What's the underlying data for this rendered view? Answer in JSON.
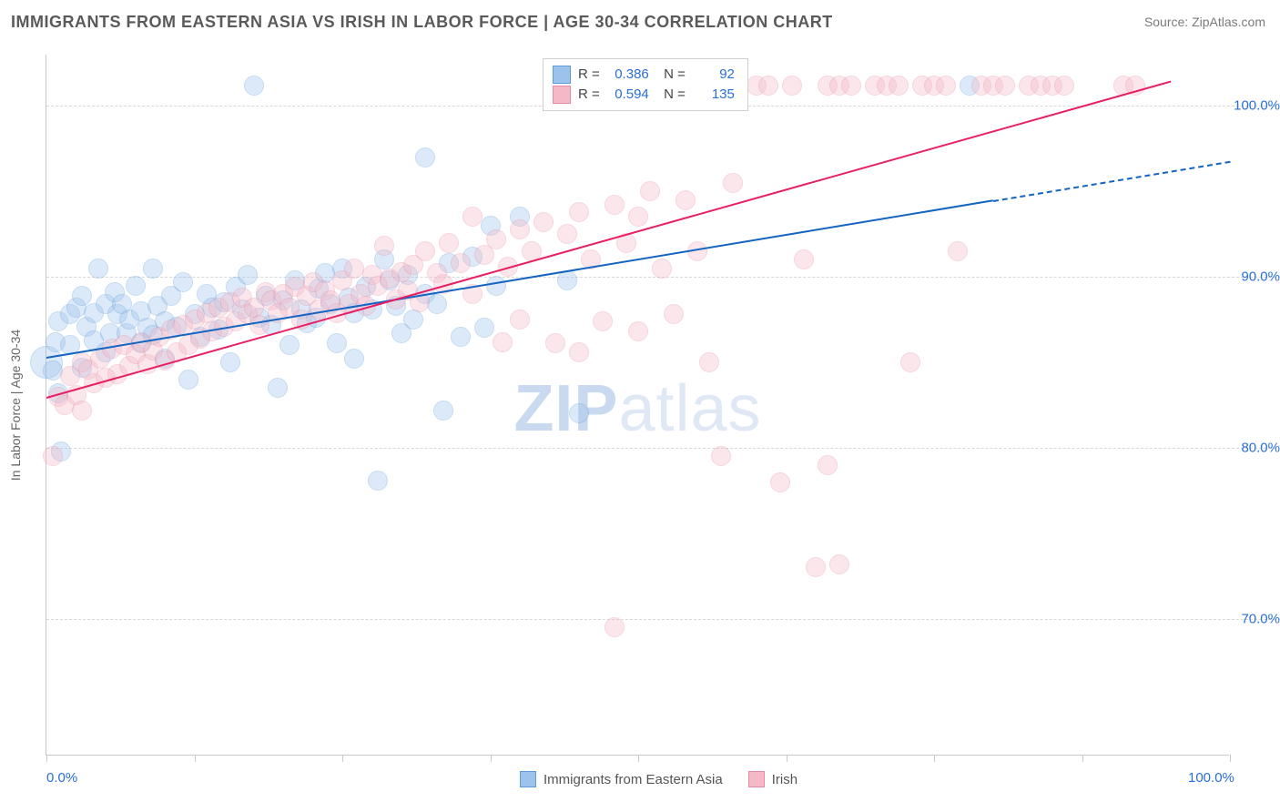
{
  "title": "IMMIGRANTS FROM EASTERN ASIA VS IRISH IN LABOR FORCE | AGE 30-34 CORRELATION CHART",
  "source_label": "Source: ",
  "source_name": "ZipAtlas.com",
  "watermark_a": "ZIP",
  "watermark_b": "atlas",
  "chart": {
    "type": "scatter-correlation",
    "xlim": [
      0,
      100
    ],
    "ylim": [
      62,
      103
    ],
    "x_ticks": [
      0,
      12.5,
      25,
      37.5,
      50,
      62.5,
      75,
      87.5,
      100
    ],
    "x_tick_labels_shown": {
      "0": "0.0%",
      "100": "100.0%"
    },
    "y_gridlines": [
      70,
      80,
      90,
      100
    ],
    "y_tick_labels": {
      "70": "70.0%",
      "80": "80.0%",
      "90": "90.0%",
      "100": "100.0%"
    },
    "y_axis_title": "In Labor Force | Age 30-34",
    "background_color": "#ffffff",
    "grid_color": "#d8d8d8",
    "axis_color": "#c9c9c9",
    "label_color": "#2a6fd6",
    "marker_radius": 11,
    "marker_radius_large": 16,
    "marker_opacity": 0.35,
    "series": [
      {
        "key": "asia",
        "label": "Immigrants from Eastern Asia",
        "fill": "#9cc3ec",
        "stroke": "#5a9bd8",
        "trend_color": "#1565c0",
        "R": "0.386",
        "N": "92",
        "trend": {
          "x1": 0,
          "y1": 85.3,
          "x2": 80,
          "y2": 94.5,
          "dash_from_x": 80,
          "dash_to_x": 100,
          "y_at_100": 96.8
        },
        "points": [
          [
            0,
            85,
            18
          ],
          [
            0.5,
            84.5
          ],
          [
            0.8,
            86.2
          ],
          [
            1,
            83.2
          ],
          [
            1,
            87.4
          ],
          [
            1.2,
            79.8
          ],
          [
            2,
            87.8
          ],
          [
            2,
            86.0
          ],
          [
            2.5,
            88.2
          ],
          [
            3,
            84.7
          ],
          [
            3,
            88.9
          ],
          [
            3.4,
            87.1
          ],
          [
            4,
            86.3
          ],
          [
            4,
            87.9
          ],
          [
            4.4,
            90.5
          ],
          [
            5,
            88.4
          ],
          [
            5,
            85.6
          ],
          [
            5.4,
            86.7
          ],
          [
            5.8,
            89.1
          ],
          [
            6,
            87.8
          ],
          [
            6.4,
            88.4
          ],
          [
            6.8,
            86.7
          ],
          [
            7,
            87.5
          ],
          [
            7.5,
            89.5
          ],
          [
            8,
            86.1
          ],
          [
            8,
            88.0
          ],
          [
            8.5,
            87.0
          ],
          [
            9,
            86.6
          ],
          [
            9,
            90.5
          ],
          [
            9.4,
            88.3
          ],
          [
            10,
            87.4
          ],
          [
            10,
            85.2
          ],
          [
            10.5,
            88.9
          ],
          [
            11,
            87.1
          ],
          [
            11.5,
            89.7
          ],
          [
            12,
            84.0
          ],
          [
            12.5,
            87.8
          ],
          [
            13,
            86.5
          ],
          [
            13.5,
            89.0
          ],
          [
            14,
            88.2
          ],
          [
            14.5,
            86.9
          ],
          [
            15,
            88.5
          ],
          [
            15.5,
            85.0
          ],
          [
            16,
            89.4
          ],
          [
            16.5,
            88.1
          ],
          [
            17,
            90.1
          ],
          [
            17.5,
            101.2
          ],
          [
            18,
            87.6
          ],
          [
            18.5,
            88.9
          ],
          [
            19,
            87.2
          ],
          [
            19.5,
            83.5
          ],
          [
            20,
            88.6
          ],
          [
            20.5,
            86.0
          ],
          [
            21,
            89.8
          ],
          [
            21.5,
            88.1
          ],
          [
            22,
            87.3
          ],
          [
            22.8,
            87.6
          ],
          [
            23,
            89.3
          ],
          [
            23.5,
            90.2
          ],
          [
            24,
            88.4
          ],
          [
            24.5,
            86.1
          ],
          [
            25,
            90.5
          ],
          [
            25.5,
            88.8
          ],
          [
            26,
            87.9
          ],
          [
            26,
            85.2
          ],
          [
            27,
            89.4
          ],
          [
            27.5,
            88.1
          ],
          [
            28,
            78.1
          ],
          [
            28.5,
            91.0
          ],
          [
            29,
            89.8
          ],
          [
            29.5,
            88.3
          ],
          [
            30,
            86.7
          ],
          [
            30.5,
            90.1
          ],
          [
            31,
            87.5
          ],
          [
            32,
            89.0
          ],
          [
            32,
            97.0
          ],
          [
            33,
            88.4
          ],
          [
            33.5,
            82.2
          ],
          [
            34,
            90.8
          ],
          [
            35,
            86.5
          ],
          [
            36,
            91.2
          ],
          [
            37,
            87.0
          ],
          [
            37.5,
            93.0
          ],
          [
            38,
            89.5
          ],
          [
            40,
            93.5
          ],
          [
            44,
            89.8
          ],
          [
            45,
            82.0
          ],
          [
            47,
            101.2
          ],
          [
            52,
            101.2
          ],
          [
            54,
            101.2
          ],
          [
            56,
            101.2
          ],
          [
            78,
            101.2
          ]
        ]
      },
      {
        "key": "irish",
        "label": "Irish",
        "fill": "#f5b8c7",
        "stroke": "#e68aa3",
        "trend_color": "#e91e63",
        "R": "0.594",
        "N": "135",
        "trend": {
          "x1": 0,
          "y1": 83.0,
          "x2": 95,
          "y2": 101.5
        },
        "points": [
          [
            0.5,
            79.5
          ],
          [
            1,
            83.0
          ],
          [
            1.5,
            82.5
          ],
          [
            2,
            84.2
          ],
          [
            2.5,
            83.1
          ],
          [
            3,
            85.0
          ],
          [
            3,
            82.2
          ],
          [
            3.5,
            84.6
          ],
          [
            4,
            83.8
          ],
          [
            4.5,
            85.2
          ],
          [
            5,
            84.1
          ],
          [
            5.5,
            85.8
          ],
          [
            6,
            84.3
          ],
          [
            6.5,
            86.0
          ],
          [
            7,
            84.8
          ],
          [
            7.5,
            85.5
          ],
          [
            8,
            86.2
          ],
          [
            8.5,
            84.9
          ],
          [
            9,
            85.7
          ],
          [
            9.5,
            86.5
          ],
          [
            10,
            85.1
          ],
          [
            10.5,
            86.9
          ],
          [
            11,
            85.6
          ],
          [
            11.5,
            87.2
          ],
          [
            12,
            86.0
          ],
          [
            12.5,
            87.5
          ],
          [
            13,
            86.4
          ],
          [
            13.5,
            87.9
          ],
          [
            14,
            86.8
          ],
          [
            14.5,
            88.2
          ],
          [
            15,
            87.1
          ],
          [
            15.5,
            88.5
          ],
          [
            16,
            87.4
          ],
          [
            16.5,
            88.8
          ],
          [
            17,
            87.8
          ],
          [
            17.5,
            88.2
          ],
          [
            18,
            87.2
          ],
          [
            18.5,
            89.1
          ],
          [
            19,
            88.6
          ],
          [
            19.5,
            87.9
          ],
          [
            20,
            89.0
          ],
          [
            20.5,
            88.2
          ],
          [
            21,
            89.4
          ],
          [
            21.5,
            87.5
          ],
          [
            22,
            88.9
          ],
          [
            22.5,
            89.7
          ],
          [
            23,
            88.1
          ],
          [
            23.5,
            89.2
          ],
          [
            24,
            88.6
          ],
          [
            24.5,
            87.9
          ],
          [
            25,
            89.8
          ],
          [
            25.5,
            88.4
          ],
          [
            26,
            90.5
          ],
          [
            26.5,
            89.0
          ],
          [
            27,
            88.3
          ],
          [
            27.5,
            90.1
          ],
          [
            28,
            89.5
          ],
          [
            28.5,
            91.8
          ],
          [
            29,
            89.9
          ],
          [
            29.5,
            88.7
          ],
          [
            30,
            90.3
          ],
          [
            30.5,
            89.2
          ],
          [
            31,
            90.7
          ],
          [
            31.5,
            88.5
          ],
          [
            32,
            91.5
          ],
          [
            33,
            90.2
          ],
          [
            33.5,
            89.6
          ],
          [
            34,
            92.0
          ],
          [
            35,
            90.8
          ],
          [
            36,
            89.0
          ],
          [
            36,
            93.5
          ],
          [
            37,
            91.3
          ],
          [
            38,
            92.2
          ],
          [
            38.5,
            86.2
          ],
          [
            39,
            90.6
          ],
          [
            40,
            87.5
          ],
          [
            40,
            92.8
          ],
          [
            41,
            91.5
          ],
          [
            42,
            93.2
          ],
          [
            43,
            86.1
          ],
          [
            44,
            92.5
          ],
          [
            45,
            85.6
          ],
          [
            45,
            93.8
          ],
          [
            46,
            91.0
          ],
          [
            47,
            87.4
          ],
          [
            48,
            94.2
          ],
          [
            48,
            69.5
          ],
          [
            49,
            92.0
          ],
          [
            50,
            86.8
          ],
          [
            50,
            93.5
          ],
          [
            51,
            95.0
          ],
          [
            52,
            90.5
          ],
          [
            53,
            87.8
          ],
          [
            54,
            94.5
          ],
          [
            55,
            91.5
          ],
          [
            56,
            85.0
          ],
          [
            57,
            79.5
          ],
          [
            58,
            95.5
          ],
          [
            60,
            101.2
          ],
          [
            61,
            101.2
          ],
          [
            62,
            78.0
          ],
          [
            63,
            101.2
          ],
          [
            64,
            91.0
          ],
          [
            65,
            73.0
          ],
          [
            66,
            101.2
          ],
          [
            66,
            79.0
          ],
          [
            67,
            101.2
          ],
          [
            67,
            73.2
          ],
          [
            68,
            101.2
          ],
          [
            70,
            101.2
          ],
          [
            71,
            101.2
          ],
          [
            72,
            101.2
          ],
          [
            73,
            85.0
          ],
          [
            74,
            101.2
          ],
          [
            75,
            101.2
          ],
          [
            76,
            101.2
          ],
          [
            77,
            91.5
          ],
          [
            79,
            101.2
          ],
          [
            80,
            101.2
          ],
          [
            81,
            101.2
          ],
          [
            83,
            101.2
          ],
          [
            84,
            101.2
          ],
          [
            85,
            101.2
          ],
          [
            86,
            101.2
          ],
          [
            91,
            101.2
          ],
          [
            92,
            101.2
          ]
        ]
      }
    ]
  }
}
